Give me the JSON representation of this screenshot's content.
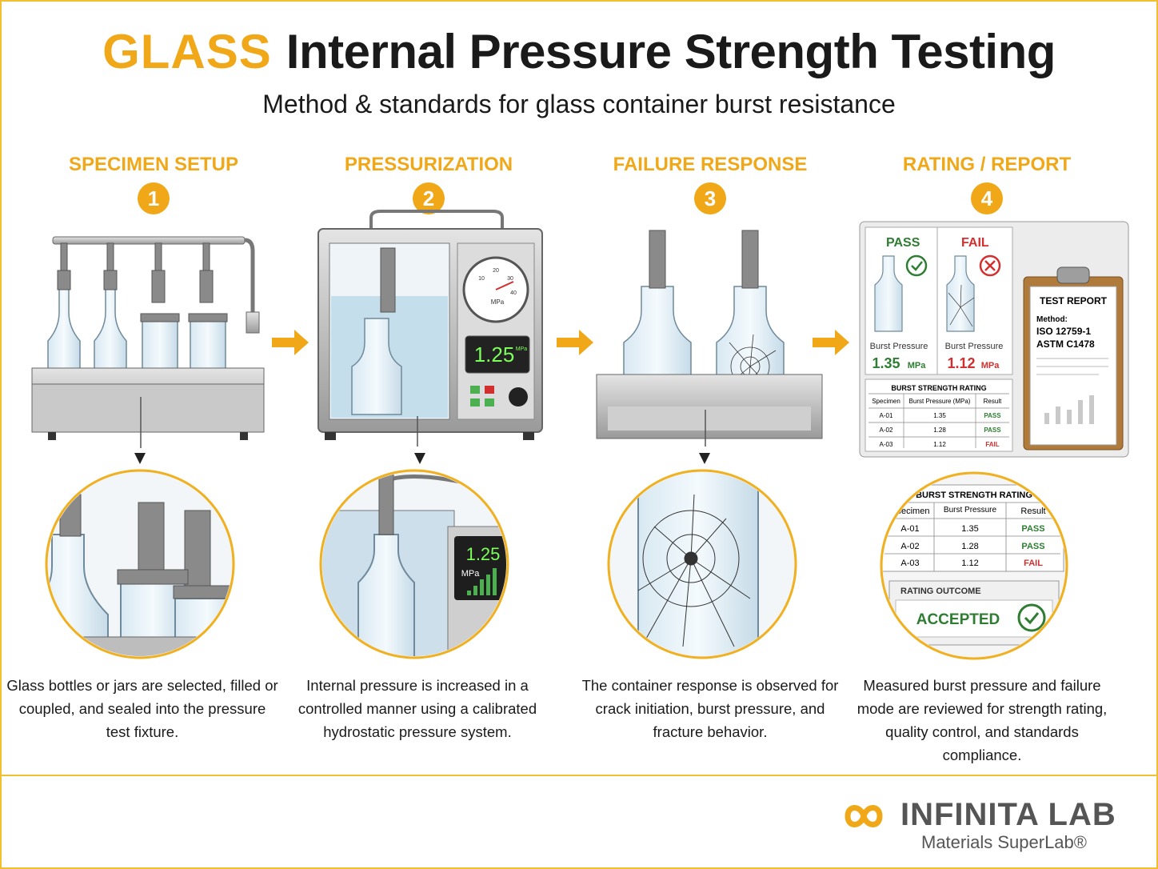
{
  "header": {
    "title_accent": "GLASS",
    "title_main": "Internal Pressure Strength Testing",
    "subtitle": "Method & standards for glass container burst resistance"
  },
  "steps": [
    {
      "number": "1",
      "heading": "SPECIMEN SETUP",
      "description": "Glass bottles or jars are selected, filled or coupled, and sealed into the pressure test fixture."
    },
    {
      "number": "2",
      "heading": "PRESSURIZATION",
      "description": "Internal pressure is increased in a controlled manner using a calibrated hydrostatic pressure system."
    },
    {
      "number": "3",
      "heading": "FAILURE RESPONSE",
      "description": "The container response is observed for crack initiation, burst pressure, and fracture behavior."
    },
    {
      "number": "4",
      "heading": "RATING / REPORT",
      "description": "Measured burst pressure and failure mode are reviewed for strength rating, quality control, and standards compliance."
    }
  ],
  "gauge": {
    "unit": "MPa",
    "ticks": [
      "10",
      "20",
      "30",
      "40"
    ]
  },
  "display": {
    "reading": "1.25",
    "unit": "MPa"
  },
  "report": {
    "pass": {
      "label": "PASS",
      "caption": "Burst Pressure",
      "value": "1.35",
      "unit": "MPa"
    },
    "fail": {
      "label": "FAIL",
      "caption": "Burst Pressure",
      "value": "1.12",
      "unit": "MPa"
    },
    "clipboard": {
      "title": "TEST REPORT",
      "method_label": "Method:",
      "standards": [
        "ISO 12759-1",
        "ASTM C1478"
      ]
    },
    "table": {
      "title": "BURST STRENGTH RATING",
      "headers": [
        "Specimen",
        "Burst Pressure (MPa)",
        "Result"
      ],
      "rows": [
        [
          "A-01",
          "1.35",
          "PASS"
        ],
        [
          "A-02",
          "1.28",
          "PASS"
        ],
        [
          "A-03",
          "1.12",
          "FAIL"
        ]
      ]
    },
    "zoom_headers": [
      "Specimen",
      "Burst Pressure",
      "Result"
    ],
    "outcome_label": "RATING OUTCOME",
    "outcome_value": "ACCEPTED"
  },
  "brand": {
    "name": "INFINITA LAB",
    "tagline": "Materials SuperLab®"
  },
  "colors": {
    "accent": "#f0a818",
    "pass": "#2e7d32",
    "fail": "#d32f2f",
    "display_green": "#7cff5a"
  }
}
